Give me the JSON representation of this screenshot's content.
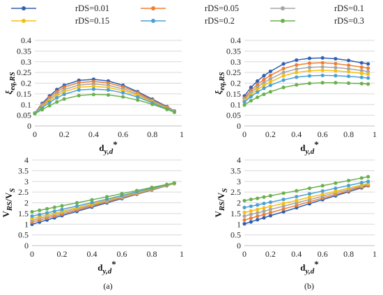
{
  "legend": {
    "series": [
      {
        "name": "rDS=0.01",
        "color": "#2e5fb0"
      },
      {
        "name": "rDS=0.05",
        "color": "#ef7d31"
      },
      {
        "name": "rDS=0.1",
        "color": "#a5a5a5"
      },
      {
        "name": "rDS=0.15",
        "color": "#f5be10"
      },
      {
        "name": "rDS=0.2",
        "color": "#4aa0d8"
      },
      {
        "name": "rDS=0.3",
        "color": "#6ab04c"
      }
    ]
  },
  "chart_data": [
    {
      "type": "line",
      "panel": "top-left",
      "xlabel": "d_y,d*",
      "ylabel": "ξ_eq,RS",
      "xlim": [
        0,
        1
      ],
      "ylim": [
        0,
        0.4
      ],
      "xticks": [
        "0",
        "0.2",
        "0.4",
        "0.6",
        "0.8",
        "1"
      ],
      "yticks": [
        "0",
        "0.05",
        "0.1",
        "0.15",
        "0.2",
        "0.25",
        "0.3",
        "0.35",
        "0.4"
      ],
      "x": [
        0,
        0.05,
        0.1,
        0.15,
        0.2,
        0.3,
        0.4,
        0.5,
        0.6,
        0.7,
        0.8,
        0.9,
        0.95
      ],
      "series": [
        {
          "name": "rDS=0.01",
          "values": [
            0.06,
            0.105,
            0.14,
            0.17,
            0.19,
            0.213,
            0.218,
            0.21,
            0.19,
            0.16,
            0.125,
            0.09,
            0.07
          ]
        },
        {
          "name": "rDS=0.05",
          "values": [
            0.06,
            0.1,
            0.133,
            0.16,
            0.181,
            0.203,
            0.208,
            0.201,
            0.182,
            0.155,
            0.12,
            0.087,
            0.069
          ]
        },
        {
          "name": "rDS=0.1",
          "values": [
            0.06,
            0.095,
            0.125,
            0.15,
            0.17,
            0.191,
            0.196,
            0.19,
            0.173,
            0.148,
            0.116,
            0.084,
            0.068
          ]
        },
        {
          "name": "rDS=0.15",
          "values": [
            0.06,
            0.09,
            0.118,
            0.141,
            0.16,
            0.181,
            0.185,
            0.18,
            0.165,
            0.142,
            0.112,
            0.082,
            0.067
          ]
        },
        {
          "name": "rDS=0.2",
          "values": [
            0.06,
            0.085,
            0.11,
            0.131,
            0.148,
            0.168,
            0.172,
            0.168,
            0.155,
            0.135,
            0.108,
            0.08,
            0.066
          ]
        },
        {
          "name": "rDS=0.3",
          "values": [
            0.057,
            0.076,
            0.095,
            0.112,
            0.126,
            0.142,
            0.147,
            0.145,
            0.136,
            0.121,
            0.101,
            0.077,
            0.064
          ]
        }
      ]
    },
    {
      "type": "line",
      "panel": "top-right",
      "xlabel": "d_y,d*",
      "ylabel": "ξ_eq,RS",
      "xlim": [
        0,
        1
      ],
      "ylim": [
        0,
        0.4
      ],
      "xticks": [
        "0",
        "0.2",
        "0.4",
        "0.6",
        "0.8",
        "1"
      ],
      "yticks": [
        "0",
        "0.05",
        "0.1",
        "0.15",
        "0.2",
        "0.25",
        "0.3",
        "0.35",
        "0.4"
      ],
      "x": [
        0,
        0.05,
        0.1,
        0.15,
        0.2,
        0.3,
        0.4,
        0.5,
        0.6,
        0.7,
        0.8,
        0.9,
        0.95
      ],
      "series": [
        {
          "name": "rDS=0.01",
          "values": [
            0.14,
            0.18,
            0.21,
            0.235,
            0.255,
            0.29,
            0.308,
            0.316,
            0.318,
            0.314,
            0.306,
            0.295,
            0.29
          ]
        },
        {
          "name": "rDS=0.05",
          "values": [
            0.13,
            0.166,
            0.194,
            0.217,
            0.236,
            0.268,
            0.285,
            0.293,
            0.295,
            0.291,
            0.284,
            0.275,
            0.27
          ]
        },
        {
          "name": "rDS=0.1",
          "values": [
            0.125,
            0.156,
            0.182,
            0.203,
            0.22,
            0.25,
            0.266,
            0.274,
            0.276,
            0.273,
            0.267,
            0.259,
            0.254
          ]
        },
        {
          "name": "rDS=0.15",
          "values": [
            0.118,
            0.146,
            0.17,
            0.19,
            0.206,
            0.234,
            0.25,
            0.258,
            0.26,
            0.258,
            0.253,
            0.246,
            0.242
          ]
        },
        {
          "name": "rDS=0.2",
          "values": [
            0.112,
            0.137,
            0.158,
            0.176,
            0.19,
            0.214,
            0.228,
            0.234,
            0.236,
            0.235,
            0.232,
            0.227,
            0.224
          ]
        },
        {
          "name": "rDS=0.3",
          "values": [
            0.098,
            0.118,
            0.134,
            0.148,
            0.16,
            0.18,
            0.192,
            0.199,
            0.202,
            0.202,
            0.2,
            0.198,
            0.196
          ]
        }
      ]
    },
    {
      "type": "line",
      "panel": "bottom-left",
      "xlabel": "d_y,d*",
      "ylabel": "V_RS/V_S",
      "xlim": [
        0,
        1
      ],
      "ylim": [
        0,
        4
      ],
      "xticks": [
        "0",
        "0.2",
        "0.4",
        "0.6",
        "0.8",
        "1"
      ],
      "yticks": [
        "0",
        "0.5",
        "1",
        "1.5",
        "2",
        "2.5",
        "3",
        "3.5",
        "4"
      ],
      "x": [
        0,
        0.05,
        0.1,
        0.15,
        0.2,
        0.3,
        0.4,
        0.5,
        0.6,
        0.7,
        0.8,
        0.9,
        0.95
      ],
      "series": [
        {
          "name": "rDS=0.01",
          "values": [
            1.0,
            1.1,
            1.2,
            1.3,
            1.4,
            1.6,
            1.8,
            2.0,
            2.2,
            2.4,
            2.6,
            2.8,
            2.9
          ]
        },
        {
          "name": "rDS=0.05",
          "values": [
            1.1,
            1.19,
            1.29,
            1.38,
            1.47,
            1.66,
            1.85,
            2.04,
            2.23,
            2.42,
            2.62,
            2.81,
            2.9
          ]
        },
        {
          "name": "rDS=0.1",
          "values": [
            1.18,
            1.27,
            1.36,
            1.45,
            1.54,
            1.72,
            1.9,
            2.08,
            2.26,
            2.45,
            2.63,
            2.82,
            2.91
          ]
        },
        {
          "name": "rDS=0.15",
          "values": [
            1.27,
            1.35,
            1.44,
            1.52,
            1.61,
            1.78,
            1.95,
            2.12,
            2.3,
            2.48,
            2.65,
            2.83,
            2.91
          ]
        },
        {
          "name": "rDS=0.2",
          "values": [
            1.38,
            1.45,
            1.53,
            1.61,
            1.69,
            1.85,
            2.01,
            2.17,
            2.34,
            2.51,
            2.68,
            2.84,
            2.92
          ]
        },
        {
          "name": "rDS=0.3",
          "values": [
            1.58,
            1.65,
            1.72,
            1.79,
            1.86,
            2.0,
            2.14,
            2.28,
            2.43,
            2.57,
            2.72,
            2.86,
            2.93
          ]
        }
      ]
    },
    {
      "type": "line",
      "panel": "bottom-right",
      "xlabel": "d_y,d*",
      "ylabel": "V_RS/V_S",
      "xlim": [
        0,
        1
      ],
      "ylim": [
        0,
        4
      ],
      "xticks": [
        "0",
        "0.2",
        "0.4",
        "0.6",
        "0.8",
        "1"
      ],
      "yticks": [
        "0",
        "0.5",
        "1",
        "1.5",
        "2",
        "2.5",
        "3",
        "3.5",
        "4"
      ],
      "x": [
        0,
        0.05,
        0.1,
        0.15,
        0.2,
        0.3,
        0.4,
        0.5,
        0.6,
        0.7,
        0.8,
        0.9,
        0.95
      ],
      "series": [
        {
          "name": "rDS=0.01",
          "values": [
            1.02,
            1.11,
            1.21,
            1.3,
            1.4,
            1.58,
            1.77,
            1.96,
            2.15,
            2.33,
            2.52,
            2.7,
            2.8
          ]
        },
        {
          "name": "rDS=0.05",
          "values": [
            1.2,
            1.28,
            1.37,
            1.45,
            1.54,
            1.71,
            1.88,
            2.05,
            2.22,
            2.39,
            2.56,
            2.74,
            2.82
          ]
        },
        {
          "name": "rDS=0.1",
          "values": [
            1.38,
            1.46,
            1.53,
            1.61,
            1.69,
            1.84,
            2.0,
            2.15,
            2.31,
            2.47,
            2.62,
            2.78,
            2.86
          ]
        },
        {
          "name": "rDS=0.15",
          "values": [
            1.55,
            1.62,
            1.69,
            1.76,
            1.83,
            1.97,
            2.11,
            2.26,
            2.4,
            2.54,
            2.69,
            2.83,
            2.9
          ]
        },
        {
          "name": "rDS=0.2",
          "values": [
            1.78,
            1.84,
            1.9,
            1.97,
            2.03,
            2.16,
            2.29,
            2.42,
            2.55,
            2.68,
            2.81,
            2.94,
            3.0
          ]
        },
        {
          "name": "rDS=0.3",
          "values": [
            2.1,
            2.16,
            2.21,
            2.27,
            2.33,
            2.45,
            2.56,
            2.68,
            2.8,
            2.92,
            3.04,
            3.16,
            3.22
          ]
        }
      ]
    }
  ],
  "captions": [
    "(a)",
    "(b)"
  ]
}
